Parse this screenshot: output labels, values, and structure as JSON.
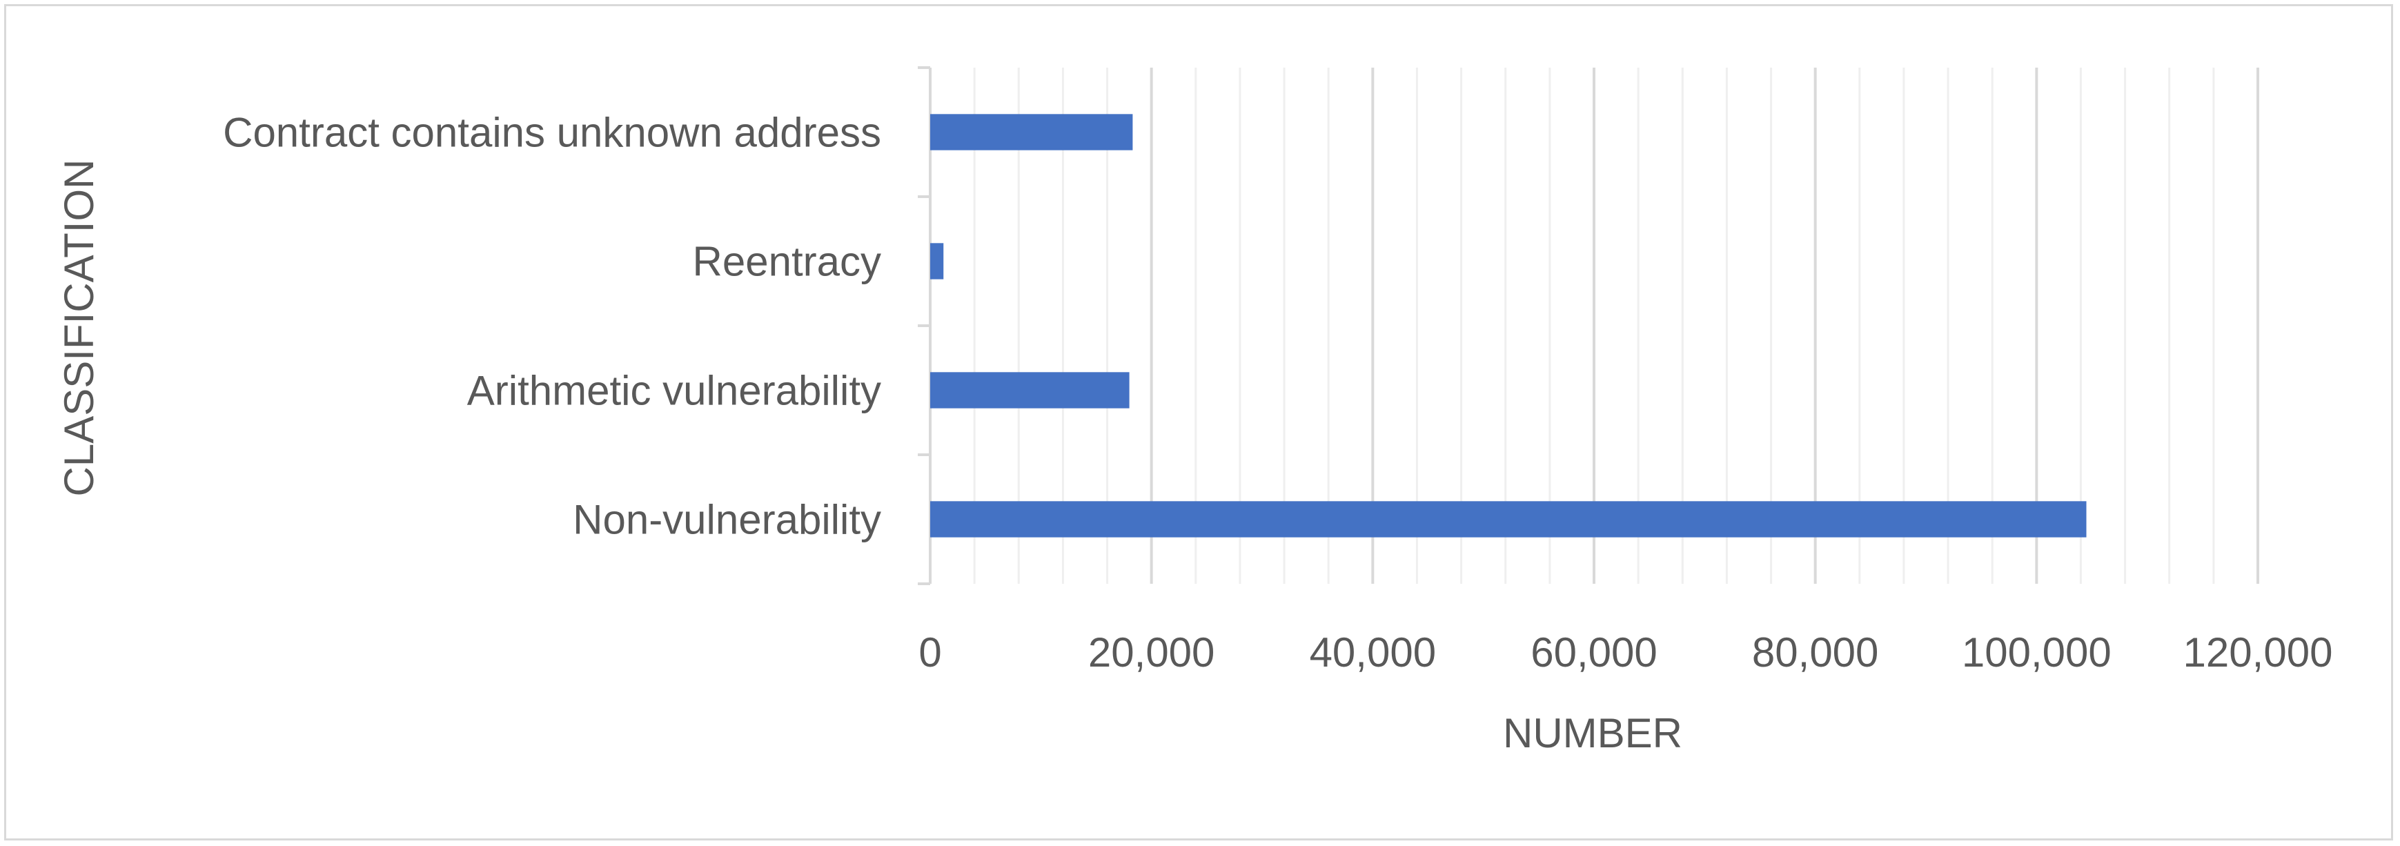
{
  "chart_data": {
    "type": "bar",
    "orientation": "horizontal",
    "categories": [
      "Non-vulnerability",
      "Arithmetic vulnerability",
      "Reentracy",
      "Contract contains unknown address"
    ],
    "values": [
      104500,
      18000,
      1200,
      18300
    ],
    "xlabel": "NUMBER",
    "ylabel": "CLASSIFICATION",
    "xlim": [
      0,
      120000
    ],
    "xticks": [
      0,
      20000,
      40000,
      60000,
      80000,
      100000,
      120000
    ],
    "xtick_labels": [
      "0",
      "20,000",
      "40,000",
      "60,000",
      "80,000",
      "100,000",
      "120,000"
    ],
    "grid": "vertical major and minor",
    "legend": "none",
    "colors": {
      "bar": "#4472c4",
      "major_grid": "#d9d9d9",
      "minor_grid": "#efefef",
      "axis": "#d9d9d9",
      "text": "#595959"
    }
  }
}
